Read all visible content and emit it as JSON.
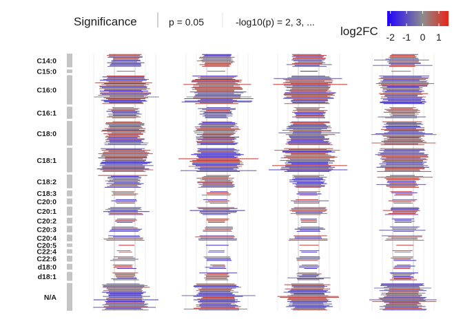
{
  "chart_data": {
    "type": "bar",
    "legend": {
      "significance_title": "Significance",
      "p_threshold_label": "p = 0.05",
      "neglog_label": "-log10(p) = 2, 3, ...",
      "colorbar_title": "log2FC",
      "colorbar_ticks": [
        "-2",
        "-1",
        "0",
        "1"
      ],
      "colorbar_range": [
        -2.2,
        1.6
      ],
      "colors": {
        "low": "#1f00ff",
        "mid": "#8c8c8c",
        "high": "#e8251a"
      },
      "placement": "top"
    },
    "panels": 4,
    "x_range": [
      -6,
      6
    ],
    "rows": [
      {
        "label": "C14:0",
        "count": 14,
        "spread": 2.2
      },
      {
        "label": "C15:0",
        "count": 1,
        "spread": 1.2
      },
      {
        "label": "C16:0",
        "count": 34,
        "spread": 3.0
      },
      {
        "label": "C16:1",
        "count": 12,
        "spread": 2.0
      },
      {
        "label": "C18:0",
        "count": 28,
        "spread": 2.6
      },
      {
        "label": "C18:1",
        "count": 28,
        "spread": 3.2
      },
      {
        "label": "C18:2",
        "count": 14,
        "spread": 2.2
      },
      {
        "label": "C18:3",
        "count": 4,
        "spread": 1.6
      },
      {
        "label": "C20:0",
        "count": 4,
        "spread": 1.6
      },
      {
        "label": "C20:1",
        "count": 8,
        "spread": 2.2
      },
      {
        "label": "C20:2",
        "count": 4,
        "spread": 1.4
      },
      {
        "label": "C20:3",
        "count": 5,
        "spread": 1.8
      },
      {
        "label": "C20:4",
        "count": 5,
        "spread": 2.4
      },
      {
        "label": "C20:5",
        "count": 1,
        "spread": 1.4
      },
      {
        "label": "C22:4",
        "count": 2,
        "spread": 1.2
      },
      {
        "label": "C22:6",
        "count": 4,
        "spread": 1.6
      },
      {
        "label": "d18:0",
        "count": 4,
        "spread": 1.2
      },
      {
        "label": "d18:1",
        "count": 8,
        "spread": 1.6
      },
      {
        "label": "N/A",
        "count": 32,
        "spread": 2.8
      }
    ],
    "grid": true,
    "title": "",
    "xlabel": "",
    "ylabel": ""
  }
}
